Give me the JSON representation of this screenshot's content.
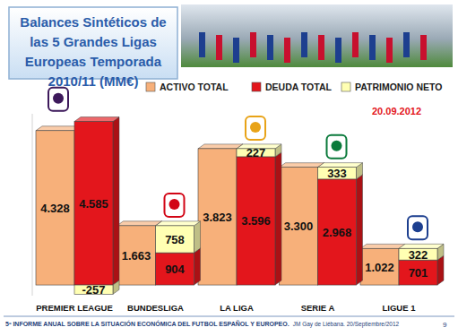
{
  "chart_data": {
    "type": "bar",
    "title": "Balances Sintéticos de las 5 Grandes Ligas Europeas Temporada 2010/11 (MM€)",
    "date": "20.09.2012",
    "footer": [
      "5º INFORME ANUAL SOBRE LA SITUACIÓN ECONÓMICA DEL FUTBOL ESPAÑOL Y EUROPEO.",
      "JM Gay de Liébana.  20/Septiembre/2012"
    ],
    "page_number": 9,
    "categories": [
      "PREMIER LEAGUE",
      "BUNDESLIGA",
      "LA LIGA",
      "SERIE A",
      "LIGUE 1"
    ],
    "series": [
      {
        "name": "ACTIVO TOTAL",
        "color": "#f7b07a",
        "type": "bar",
        "values": [
          4328,
          1663,
          3823,
          3300,
          1022
        ],
        "value_labels": [
          "4.328",
          "1.663",
          "3.823",
          "3.300",
          "1.022"
        ]
      },
      {
        "name": "DEUDA TOTAL",
        "color": "#e3161c",
        "type": "stacked_bar",
        "values": [
          4585,
          904,
          3596,
          2968,
          701
        ],
        "value_labels": [
          "4.585",
          "904",
          "3.596",
          "2.968",
          "701"
        ]
      },
      {
        "name": "PATRIMONIO NETO",
        "color": "#ffffb3",
        "type": "stacked_bar",
        "values": [
          -257,
          758,
          227,
          333,
          322
        ]
      }
    ],
    "ylim": [
      -300,
      4800
    ],
    "yticks": [],
    "tick_labels": false,
    "grid": false,
    "data_labels": true,
    "legend": "top"
  }
}
